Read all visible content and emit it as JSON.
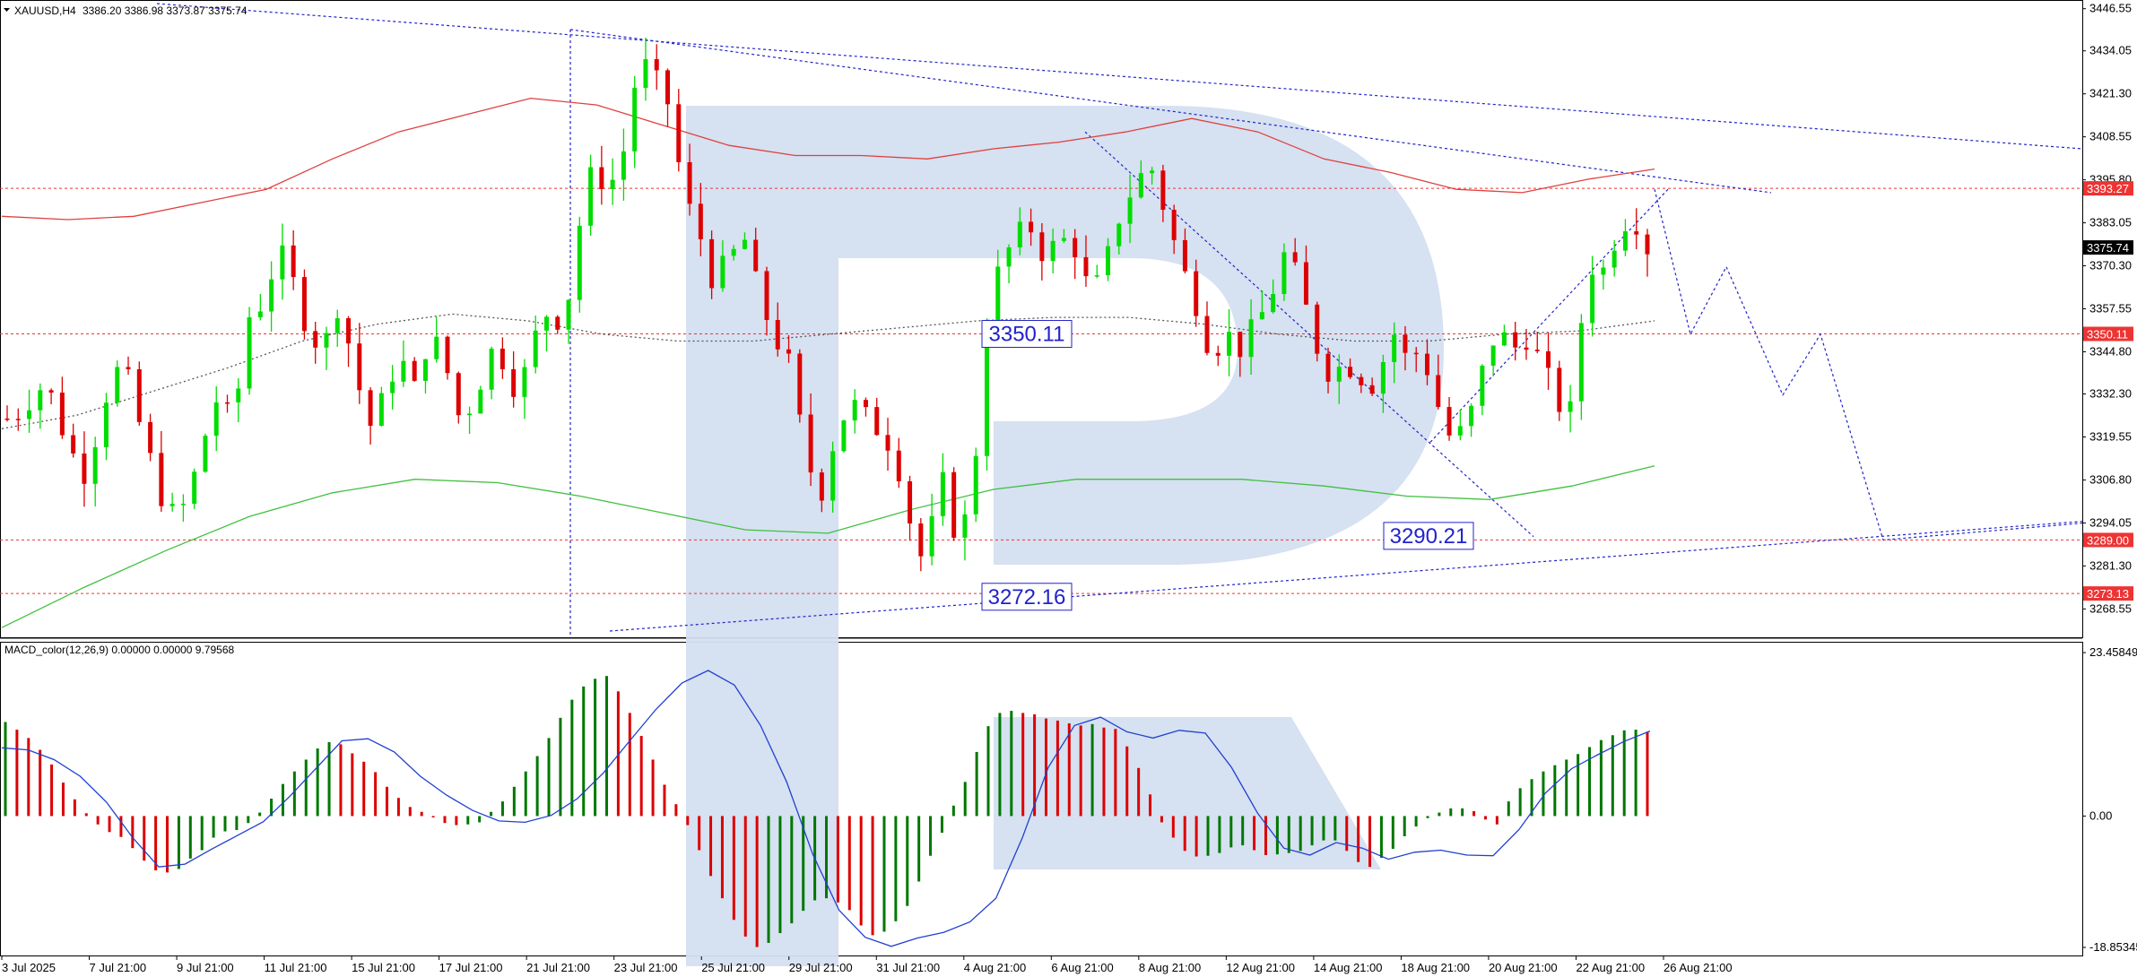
{
  "header": {
    "symbol": "XAUUSD,H4",
    "ohlc": "3386.20 3386.98 3373.87 3375.74"
  },
  "macd_label": "MACD_color(12,26,9) 0.00000 0.00000 9.79568",
  "colors": {
    "bull": "#00dd00",
    "bear": "#dd0000",
    "ma_red": "#e04040",
    "ma_green": "#40c040",
    "trend": "#2222cc",
    "level": "#ee3333",
    "macd_up": "#007700",
    "macd_down": "#dd0000",
    "watermark": "#d4dff0"
  },
  "chart_data": {
    "type": "candlestick",
    "price_axis": {
      "ylim": [
        3262.0,
        3447.0
      ],
      "ticks": [
        "3446.55",
        "3434.05",
        "3421.30",
        "3408.55",
        "3395.80",
        "3383.05",
        "3370.30",
        "3357.55",
        "3344.80",
        "3332.30",
        "3319.55",
        "3306.80",
        "3294.05",
        "3281.30",
        "3268.55"
      ]
    },
    "macd_axis": {
      "ylim": [
        -19.5,
        24.5
      ],
      "ticks": [
        "23.45849",
        "0.00",
        "-18.85345"
      ]
    },
    "time_labels": [
      "3 Jul 2025",
      "7 Jul 21:00",
      "9 Jul 21:00",
      "11 Jul 21:00",
      "15 Jul 21:00",
      "17 Jul 21:00",
      "21 Jul 21:00",
      "23 Jul 21:00",
      "25 Jul 21:00",
      "29 Jul 21:00",
      "31 Jul 21:00",
      "4 Aug 21:00",
      "6 Aug 21:00",
      "8 Aug 21:00",
      "12 Aug 21:00",
      "14 Aug 21:00",
      "18 Aug 21:00",
      "20 Aug 21:00",
      "22 Aug 21:00",
      "26 Aug 21:00"
    ],
    "levels": [
      {
        "value": 3393.27,
        "label": "3393.27"
      },
      {
        "value": 3350.11,
        "label": "3350.11"
      },
      {
        "value": 3289.0,
        "label": "3289.00"
      },
      {
        "value": 3273.13,
        "label": "3273.13"
      }
    ],
    "current_price": {
      "value": 3375.74,
      "label": "3375.74"
    },
    "annotations": [
      {
        "label": "3350.11",
        "value": 3350.11
      },
      {
        "label": "3290.21",
        "value": 3290.21
      },
      {
        "label": "3272.16",
        "value": 3272.16
      }
    ],
    "close_path": [
      3325,
      3328,
      3335,
      3331,
      3318,
      3308,
      3322,
      3340,
      3336,
      3320,
      3305,
      3296,
      3300,
      3318,
      3332,
      3322,
      3355,
      3360,
      3375,
      3365,
      3352,
      3345,
      3360,
      3342,
      3322,
      3330,
      3345,
      3332,
      3350,
      3343,
      3326,
      3330,
      3345,
      3343,
      3332,
      3348,
      3358,
      3353,
      3382,
      3400,
      3393,
      3405,
      3432,
      3425,
      3418,
      3390,
      3380,
      3365,
      3372,
      3378,
      3360,
      3350,
      3340,
      3315,
      3302,
      3320,
      3330,
      3325,
      3322,
      3316,
      3295,
      3280,
      3308,
      3292,
      3296,
      3349,
      3371,
      3378,
      3382,
      3373,
      3378,
      3376,
      3360,
      3370,
      3387,
      3395,
      3400,
      3386,
      3370,
      3360,
      3345,
      3350,
      3346,
      3352,
      3362,
      3375,
      3362,
      3347,
      3338,
      3342,
      3338,
      3335,
      3352,
      3342,
      3346,
      3330,
      3318,
      3322,
      3338,
      3352,
      3345,
      3350,
      3340,
      3330,
      3326,
      3372,
      3368,
      3381,
      3387,
      3376
    ],
    "ma_red_path": [
      3385,
      3384,
      3385,
      3389,
      3393,
      3402,
      3410,
      3415,
      3420,
      3418,
      3412,
      3406,
      3403,
      3403,
      3402,
      3405,
      3407,
      3410,
      3414,
      3410,
      3402,
      3398,
      3393,
      3392,
      3396,
      3399
    ],
    "ma_dotted_path": [
      3322,
      3326,
      3333,
      3340,
      3348,
      3353,
      3356,
      3354,
      3350,
      3348,
      3348,
      3350,
      3352,
      3354,
      3355,
      3355,
      3353,
      3350,
      3348,
      3348,
      3350,
      3351,
      3354
    ],
    "ma_green_path": [
      3263,
      3275,
      3286,
      3296,
      3303,
      3307,
      3306,
      3302,
      3297,
      3292,
      3291,
      3298,
      3304,
      3307,
      3307,
      3307,
      3305,
      3302,
      3301,
      3305,
      3311
    ],
    "macd_hist": [
      13.5,
      12.4,
      11.2,
      9.5,
      7.4,
      4.8,
      2.4,
      0.4,
      -1.2,
      -2.3,
      -3.0,
      -4.6,
      -6.4,
      -7.8,
      -8.1,
      -7.6,
      -6.1,
      -4.9,
      -3.1,
      -2.2,
      -2.0,
      -1.0,
      0.5,
      2.5,
      4.6,
      6.4,
      8.1,
      9.7,
      10.6,
      10.3,
      9.0,
      7.8,
      6.3,
      4.2,
      2.6,
      1.3,
      0.6,
      -0.2,
      -1.0,
      -1.3,
      -1.2,
      -0.9,
      0.6,
      2.1,
      4.2,
      6.4,
      8.6,
      11.2,
      14.1,
      16.7,
      18.6,
      19.7,
      20.1,
      17.9,
      14.8,
      11.5,
      8.1,
      4.5,
      1.7,
      -1.3,
      -4.9,
      -8.6,
      -11.8,
      -14.9,
      -17.3,
      -18.8,
      -18.2,
      -16.8,
      -15.4,
      -13.6,
      -12.1,
      -11.8,
      -12.4,
      -13.5,
      -15.7,
      -17.1,
      -16.6,
      -15.1,
      -12.9,
      -9.4,
      -5.7,
      -2.4,
      1.5,
      4.9,
      9.2,
      12.9,
      14.8,
      15.1,
      14.8,
      14.6,
      14.0,
      13.7,
      13.3,
      13.0,
      13.2,
      12.7,
      12.5,
      10.0,
      6.9,
      3.1,
      -0.9,
      -3.1,
      -5.0,
      -5.8,
      -5.7,
      -5.3,
      -4.5,
      -4.2,
      -4.9,
      -5.6,
      -5.5,
      -5.3,
      -5.0,
      -4.2,
      -3.5,
      -3.5,
      -5.0,
      -6.6,
      -7.3,
      -6.0,
      -4.7,
      -2.9,
      -1.5,
      -0.3,
      0.5,
      1.1,
      1.1,
      0.7,
      -0.5,
      -1.2,
      2.1,
      4.0,
      5.3,
      6.4,
      7.3,
      8.1,
      8.9,
      9.9,
      10.9,
      11.6,
      12.3,
      12.4,
      12.1
    ],
    "macd_signal_path": [
      9.8,
      9.5,
      8.1,
      5.7,
      2.0,
      -3.1,
      -7.3,
      -6.9,
      -4.8,
      -2.8,
      -0.8,
      2.8,
      6.8,
      10.8,
      11.1,
      9.2,
      5.7,
      3.0,
      0.8,
      -0.7,
      -0.9,
      0.1,
      2.5,
      6.2,
      10.8,
      15.3,
      19.1,
      20.9,
      18.8,
      13.0,
      4.9,
      -5.5,
      -13.5,
      -17.4,
      -18.7,
      -17.5,
      -16.7,
      -15.2,
      -11.8,
      -3.2,
      7.0,
      13.0,
      14.2,
      12.1,
      11.2,
      12.3,
      11.9,
      7.0,
      0.4,
      -4.6,
      -5.6,
      -3.8,
      -4.6,
      -6.2,
      -5.2,
      -4.9,
      -5.6,
      -5.7,
      -1.9,
      3.3,
      6.8,
      8.8,
      10.7,
      12.2
    ]
  }
}
